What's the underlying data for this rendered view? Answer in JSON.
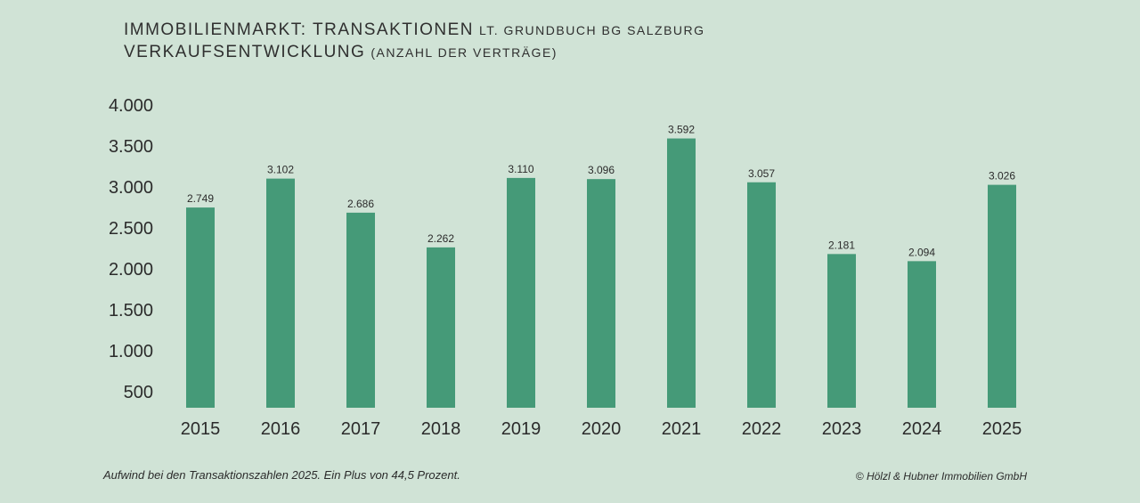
{
  "header": {
    "line1_main": "IMMOBILIENMARKT: TRANSAKTIONEN",
    "line1_sub": "LT. GRUNDBUCH BG SALZBURG",
    "line2_main": "VERKAUFSENTWICKLUNG",
    "line2_sub": "(ANZAHL DER VERTRÄGE)"
  },
  "footer": {
    "note": "Aufwind bei den Transaktionszahlen 2025. Ein Plus von 44,5 Prozent.",
    "copyright": "© Hölzl & Hubner Immobilien GmbH"
  },
  "colors": {
    "background": "#d0e3d6",
    "bar": "#459a78",
    "text": "#2b2b2b"
  },
  "chart_data": {
    "type": "bar",
    "categories": [
      "2015",
      "2016",
      "2017",
      "2018",
      "2019",
      "2020",
      "2021",
      "2022",
      "2023",
      "2024",
      "2025"
    ],
    "values": [
      2749,
      3102,
      2686,
      2262,
      3110,
      3096,
      3592,
      3057,
      2181,
      2094,
      3026
    ],
    "value_labels": [
      "2.749",
      "3.102",
      "2.686",
      "2.262",
      "3.110",
      "3.096",
      "3.592",
      "3.057",
      "2.181",
      "2.094",
      "3.026"
    ],
    "y_ticks": [
      500,
      1000,
      1500,
      2000,
      2500,
      3000,
      3500,
      4000
    ],
    "y_tick_labels": [
      "500",
      "1.000",
      "1.500",
      "2.000",
      "2.500",
      "3.000",
      "3.500",
      "4.000"
    ],
    "ylim": [
      300,
      4000
    ],
    "grid": false,
    "legend": "none"
  }
}
